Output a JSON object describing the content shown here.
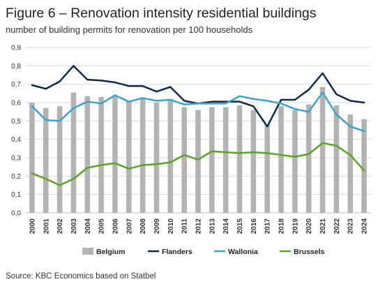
{
  "header": {
    "title": "Figure 6 – Renovation intensity residential buildings",
    "subtitle": "number of building permits for renovation per 100 households"
  },
  "footer": {
    "source": "Source: KBC Economics based on Statbel"
  },
  "colors": {
    "Belgium": "#b3b3b3",
    "Flanders": "#0e2a47",
    "Wallonia": "#3aa3d4",
    "Brussels": "#5aa51f",
    "grid": "#d9d9d9"
  },
  "chart_data": {
    "type": "bar",
    "title": "Figure 6 – Renovation intensity residential buildings",
    "subtitle": "number of building permits for renovation per 100 households",
    "xlabel": "",
    "ylabel": "",
    "ylim": [
      0,
      0.9
    ],
    "yticks": [
      "0,0",
      "0,1",
      "0,2",
      "0,3",
      "0,4",
      "0,5",
      "0,6",
      "0,7",
      "0,8",
      "0,9"
    ],
    "grid": true,
    "legend_position": "bottom",
    "categories": [
      "2000",
      "2001",
      "2002",
      "2003",
      "2004",
      "2005",
      "2006",
      "2007",
      "2008",
      "2009",
      "2010",
      "2011",
      "2012",
      "2013",
      "2014",
      "2015",
      "2016",
      "2017",
      "2018",
      "2019",
      "2020",
      "2021",
      "2022",
      "2023",
      "2024"
    ],
    "series": [
      {
        "name": "Belgium",
        "kind": "bar",
        "values": [
          0.6,
          0.57,
          0.58,
          0.655,
          0.635,
          0.63,
          0.64,
          0.61,
          0.62,
          0.6,
          0.62,
          0.575,
          0.56,
          0.575,
          0.575,
          0.585,
          0.56,
          0.48,
          0.58,
          0.56,
          0.59,
          0.685,
          0.585,
          0.535,
          0.51
        ]
      },
      {
        "name": "Flanders",
        "kind": "line",
        "values": [
          0.695,
          0.675,
          0.715,
          0.8,
          0.725,
          0.72,
          0.71,
          0.69,
          0.69,
          0.66,
          0.685,
          0.61,
          0.595,
          0.605,
          0.605,
          0.605,
          0.58,
          0.47,
          0.615,
          0.615,
          0.67,
          0.76,
          0.645,
          0.61,
          0.6
        ]
      },
      {
        "name": "Wallonia",
        "kind": "line",
        "values": [
          0.58,
          0.505,
          0.5,
          0.57,
          0.605,
          0.595,
          0.64,
          0.605,
          0.625,
          0.61,
          0.615,
          0.59,
          0.595,
          0.595,
          0.595,
          0.635,
          0.62,
          0.61,
          0.595,
          0.565,
          0.55,
          0.655,
          0.535,
          0.47,
          0.445
        ]
      },
      {
        "name": "Brussels",
        "kind": "line",
        "values": [
          0.215,
          0.185,
          0.15,
          0.185,
          0.245,
          0.26,
          0.27,
          0.24,
          0.26,
          0.265,
          0.275,
          0.315,
          0.29,
          0.335,
          0.33,
          0.325,
          0.33,
          0.325,
          0.315,
          0.305,
          0.32,
          0.38,
          0.365,
          0.315,
          0.23
        ]
      }
    ]
  }
}
